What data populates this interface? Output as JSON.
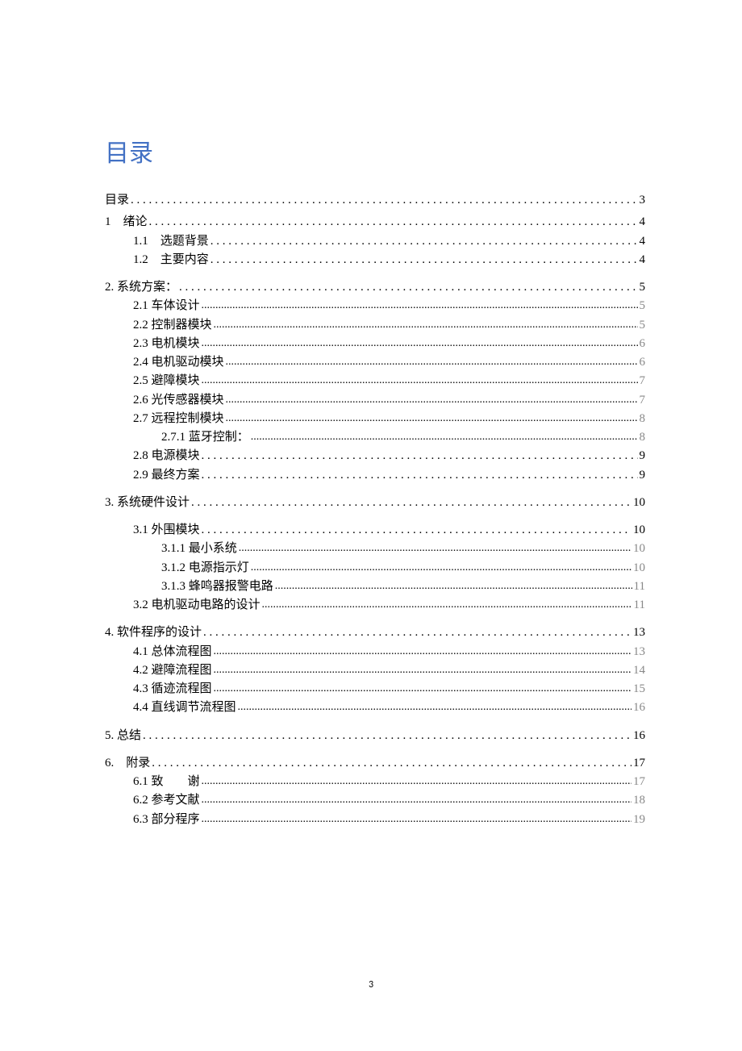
{
  "title": "目录",
  "page_footer": "3",
  "colors": {
    "title": "#4371c4",
    "text": "#000000",
    "page_gray": "#888888",
    "bg": "#ffffff"
  },
  "entries": [
    {
      "label": "目录",
      "page": "3",
      "level": 0,
      "leader": "wide",
      "pgclass": ""
    },
    {
      "label": "1　绪论",
      "page": "4",
      "level": 0,
      "leader": "wide",
      "pgclass": ""
    },
    {
      "label": "1.1　选题背景",
      "page": "4",
      "level": 1,
      "leader": "wide",
      "pgclass": ""
    },
    {
      "label": "1.2　主要内容",
      "page": "4",
      "level": 1,
      "leader": "wide",
      "pgclass": ""
    },
    {
      "label": "2. 系统方案：",
      "page": "5",
      "level": 0,
      "leader": "wide",
      "pgclass": "",
      "spaced": true
    },
    {
      "label": "2.1 车体设计",
      "page": "5",
      "level": 1,
      "leader": "tight",
      "pgclass": "gray"
    },
    {
      "label": "2.2 控制器模块",
      "page": "5",
      "level": 1,
      "leader": "tight",
      "pgclass": "gray"
    },
    {
      "label": "2.3 电机模块",
      "page": "6",
      "level": 1,
      "leader": "tight",
      "pgclass": "gray"
    },
    {
      "label": "2.4 电机驱动模块",
      "page": "6",
      "level": 1,
      "leader": "tight",
      "pgclass": "gray"
    },
    {
      "label": "2.5 避障模块",
      "page": "7",
      "level": 1,
      "leader": "tight",
      "pgclass": "gray"
    },
    {
      "label": "2.6 光传感器模块",
      "page": "7",
      "level": 1,
      "leader": "tight",
      "pgclass": "gray"
    },
    {
      "label": "2.7 远程控制模块",
      "page": "8",
      "level": 1,
      "leader": "tight",
      "pgclass": "gray"
    },
    {
      "label": "2.7.1 蓝牙控制：",
      "page": "8",
      "level": 2,
      "leader": "tight",
      "pgclass": "gray"
    },
    {
      "label": "2.8 电源模块",
      "page": "9",
      "level": 1,
      "leader": "wide",
      "pgclass": ""
    },
    {
      "label": "2.9 最终方案",
      "page": "9",
      "level": 1,
      "leader": "wide",
      "pgclass": ""
    },
    {
      "label": "3. 系统硬件设计",
      "page": "10",
      "level": 0,
      "leader": "wide",
      "pgclass": "",
      "spaced": true
    },
    {
      "label": "3.1 外围模块",
      "page": "10",
      "level": 1,
      "leader": "wide",
      "pgclass": "",
      "spaced": true
    },
    {
      "label": "3.1.1 最小系统",
      "page": "10",
      "level": 2,
      "leader": "tight",
      "pgclass": "gray"
    },
    {
      "label": "3.1.2 电源指示灯",
      "page": "10",
      "level": 2,
      "leader": "tight",
      "pgclass": "gray"
    },
    {
      "label": "3.1.3 蜂鸣器报警电路",
      "page": "11",
      "level": 2,
      "leader": "tight",
      "pgclass": "gray"
    },
    {
      "label": "3.2 电机驱动电路的设计",
      "page": "11",
      "level": 1,
      "leader": "tight",
      "pgclass": "gray"
    },
    {
      "label": "4. 软件程序的设计",
      "page": "13",
      "level": 0,
      "leader": "wide",
      "pgclass": "",
      "spaced": true
    },
    {
      "label": "4.1 总体流程图",
      "page": "13",
      "level": 1,
      "leader": "tight",
      "pgclass": "gray"
    },
    {
      "label": "4.2 避障流程图",
      "page": "14",
      "level": 1,
      "leader": "tight",
      "pgclass": "gray"
    },
    {
      "label": "4.3 循迹流程图",
      "page": "15",
      "level": 1,
      "leader": "tight",
      "pgclass": "gray"
    },
    {
      "label": "4.4 直线调节流程图",
      "page": "16",
      "level": 1,
      "leader": "tight",
      "pgclass": "gray"
    },
    {
      "label": "5. 总结",
      "page": "16",
      "level": 0,
      "leader": "wide",
      "pgclass": "",
      "spaced": true
    },
    {
      "label": "6.　附录",
      "page": "17",
      "level": 0,
      "leader": "wide",
      "pgclass": "",
      "spaced": true
    },
    {
      "label": "6.1 致　　谢",
      "page": "17",
      "level": 1,
      "leader": "tight",
      "pgclass": "gray"
    },
    {
      "label": "6.2 参考文献",
      "page": "18",
      "level": 1,
      "leader": "tight",
      "pgclass": "gray"
    },
    {
      "label": "6.3 部分程序",
      "page": "19",
      "level": 1,
      "leader": "tight",
      "pgclass": "gray"
    }
  ]
}
